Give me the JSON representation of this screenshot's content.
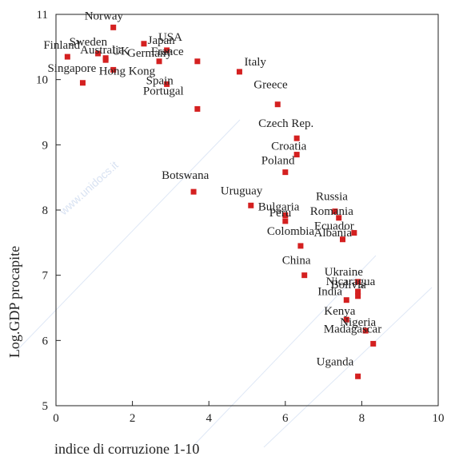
{
  "chart_data": {
    "type": "scatter",
    "title": "",
    "xlabel": "indice di corruzione 1-10",
    "ylabel": "Log.GDP procapite",
    "xlim": [
      0,
      10
    ],
    "ylim": [
      5,
      11
    ],
    "xticks": [
      0,
      2,
      4,
      6,
      8,
      10
    ],
    "yticks": [
      5,
      6,
      7,
      8,
      9,
      10,
      11
    ],
    "marker_color": "#d42020",
    "grid": false,
    "points": [
      {
        "label": "Norway",
        "x": 1.5,
        "y": 10.8
      },
      {
        "label": "USA",
        "x": 2.3,
        "y": 10.55
      },
      {
        "label": "Japan",
        "x": 2.9,
        "y": 10.45
      },
      {
        "label": "Sweden",
        "x": 1.1,
        "y": 10.4
      },
      {
        "label": "Finland",
        "x": 0.3,
        "y": 10.35
      },
      {
        "label": "UK",
        "x": 1.3,
        "y": 10.33
      },
      {
        "label": "Australia",
        "x": 1.3,
        "y": 10.3
      },
      {
        "label": "Germany",
        "x": 2.7,
        "y": 10.28
      },
      {
        "label": "France",
        "x": 3.7,
        "y": 10.28
      },
      {
        "label": "Hong Kong",
        "x": 1.5,
        "y": 10.15
      },
      {
        "label": "Singapore",
        "x": 0.7,
        "y": 9.95
      },
      {
        "label": "Spain",
        "x": 2.9,
        "y": 9.93
      },
      {
        "label": "Italy",
        "x": 4.8,
        "y": 10.12
      },
      {
        "label": "Portugal",
        "x": 3.7,
        "y": 9.55
      },
      {
        "label": "Greece",
        "x": 5.8,
        "y": 9.62
      },
      {
        "label": "Czech Rep.",
        "x": 6.3,
        "y": 9.1
      },
      {
        "label": "Croatia",
        "x": 6.3,
        "y": 8.85
      },
      {
        "label": "Poland",
        "x": 6.0,
        "y": 8.58
      },
      {
        "label": "Botswana",
        "x": 3.6,
        "y": 8.28
      },
      {
        "label": "Uruguay",
        "x": 5.1,
        "y": 8.07
      },
      {
        "label": "Russia",
        "x": 7.3,
        "y": 7.98
      },
      {
        "label": "Bulgaria",
        "x": 6.0,
        "y": 7.92
      },
      {
        "label": "Romania",
        "x": 7.4,
        "y": 7.88
      },
      {
        "label": "Peru",
        "x": 6.0,
        "y": 7.83
      },
      {
        "label": "Ecuador",
        "x": 7.8,
        "y": 7.65
      },
      {
        "label": "Albania",
        "x": 7.5,
        "y": 7.55
      },
      {
        "label": "Colombia",
        "x": 6.4,
        "y": 7.45
      },
      {
        "label": "China",
        "x": 6.5,
        "y": 7.0
      },
      {
        "label": "Ukraine",
        "x": 7.9,
        "y": 6.9
      },
      {
        "label": "Bolivia",
        "x": 7.9,
        "y": 6.75
      },
      {
        "label": "Nicaragua",
        "x": 7.9,
        "y": 6.68
      },
      {
        "label": "India",
        "x": 7.6,
        "y": 6.62
      },
      {
        "label": "Kenya",
        "x": 7.6,
        "y": 6.32
      },
      {
        "label": "Nigeria",
        "x": 8.1,
        "y": 6.15
      },
      {
        "label": "Madagascar",
        "x": 8.3,
        "y": 5.95
      },
      {
        "label": "Uganda",
        "x": 7.9,
        "y": 5.45
      }
    ]
  },
  "watermark": "www.unidocs.it"
}
